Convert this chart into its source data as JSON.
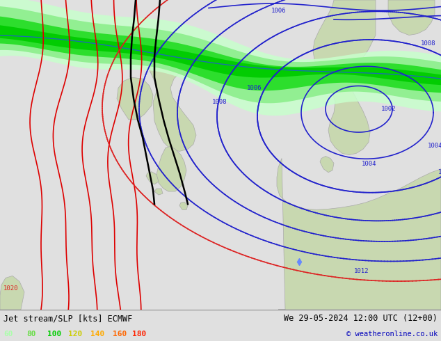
{
  "title_left": "Jet stream/SLP [kts] ECMWF",
  "title_right": "We 29-05-2024 12:00 UTC (12+00)",
  "copyright": "© weatheronline.co.uk",
  "legend_values": [
    "60",
    "80",
    "100",
    "120",
    "140",
    "160",
    "180"
  ],
  "legend_colors": [
    "#aaffaa",
    "#66dd44",
    "#00cc00",
    "#cccc00",
    "#ffaa00",
    "#ff6600",
    "#ff2200"
  ],
  "bg_color": "#e0e0e0",
  "fig_width": 6.34,
  "fig_height": 4.9,
  "dpi": 100,
  "land_color": "#c8d8b0",
  "sea_color": "#e8e8e8",
  "isobar_color": "#2222cc",
  "jet_colors": [
    "#c8ffc8",
    "#99ee99",
    "#44dd44",
    "#22cc22",
    "#88cc00",
    "#ffaa00",
    "#ff4400"
  ]
}
